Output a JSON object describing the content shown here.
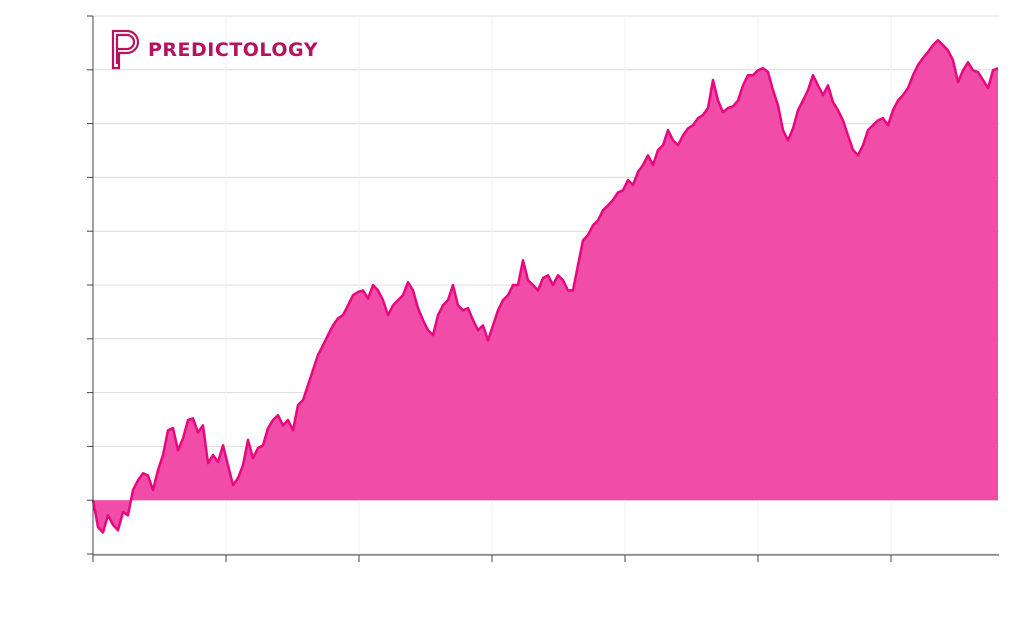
{
  "logo": "PREDICTOLOGY",
  "chart_data": {
    "type": "area",
    "color": "#f04ca8",
    "line_color": "#e8077f",
    "xlim": [
      0,
      181.2
    ],
    "xticks": [
      0,
      26.6,
      53.2,
      79.8,
      106.4,
      133,
      159.6
    ],
    "ylim": [
      -1,
      9
    ],
    "yticks": [
      -1,
      0,
      1,
      2,
      3,
      4,
      5,
      6,
      7,
      8,
      9
    ],
    "grid": true,
    "x": [
      0,
      1,
      2,
      3,
      4,
      5,
      6,
      7,
      8,
      9,
      10,
      11,
      12,
      13,
      14,
      15,
      16,
      17,
      18,
      19,
      20,
      21,
      22,
      23,
      24,
      25,
      26,
      27,
      28,
      29,
      30,
      31,
      32,
      33,
      34,
      35,
      36,
      37,
      38,
      39,
      40,
      41,
      42,
      43,
      44,
      45,
      46,
      47,
      48,
      49,
      50,
      51,
      52,
      53,
      54,
      55,
      56,
      57,
      58,
      59,
      60,
      61,
      62,
      63,
      64,
      65,
      66,
      67,
      68,
      69,
      70,
      71,
      72,
      73,
      74,
      75,
      76,
      77,
      78,
      79,
      80,
      81,
      82,
      83,
      84,
      85,
      86,
      87,
      88,
      89,
      90,
      91,
      92,
      93,
      94,
      95,
      96,
      97,
      98,
      99,
      100,
      101,
      102,
      103,
      104,
      105,
      106,
      107,
      108,
      109,
      110,
      111,
      112,
      113,
      114,
      115,
      116,
      117,
      118,
      119,
      120,
      121,
      122,
      123,
      124,
      125,
      126,
      127,
      128,
      129,
      130,
      131,
      132,
      133,
      134,
      135,
      136,
      137,
      138,
      139,
      140,
      141,
      142,
      143,
      144,
      145,
      146,
      147,
      148,
      149,
      150,
      151,
      152,
      153,
      154,
      155,
      156,
      157,
      158,
      159,
      160,
      161,
      162,
      163,
      164,
      165,
      166,
      167,
      168,
      169,
      170,
      171,
      172,
      173,
      174,
      175,
      176,
      177,
      178,
      179,
      180,
      181
    ],
    "values": [
      0,
      -0.5,
      -0.6,
      -0.28,
      -0.46,
      -0.56,
      -0.22,
      -0.28,
      0.19,
      0.37,
      0.5,
      0.46,
      0.19,
      0.56,
      0.84,
      1.3,
      1.34,
      0.93,
      1.15,
      1.49,
      1.52,
      1.26,
      1.39,
      0.69,
      0.84,
      0.71,
      1.02,
      0.65,
      0.28,
      0.41,
      0.65,
      1.12,
      0.78,
      0.97,
      1.02,
      1.34,
      1.49,
      1.58,
      1.39,
      1.49,
      1.3,
      1.77,
      1.86,
      2.14,
      2.42,
      2.7,
      2.88,
      3.07,
      3.25,
      3.38,
      3.44,
      3.62,
      3.81,
      3.87,
      3.9,
      3.75,
      4.0,
      3.9,
      3.72,
      3.44,
      3.62,
      3.72,
      3.81,
      4.05,
      3.9,
      3.57,
      3.35,
      3.16,
      3.07,
      3.44,
      3.62,
      3.72,
      4.0,
      3.62,
      3.53,
      3.57,
      3.35,
      3.16,
      3.25,
      2.97,
      3.25,
      3.53,
      3.72,
      3.81,
      4.0,
      4.0,
      4.46,
      4.09,
      4.0,
      3.9,
      4.13,
      4.18,
      4.0,
      4.18,
      4.09,
      3.9,
      3.9,
      4.37,
      4.83,
      4.93,
      5.11,
      5.2,
      5.39,
      5.48,
      5.58,
      5.72,
      5.76,
      5.95,
      5.86,
      6.1,
      6.23,
      6.41,
      6.23,
      6.51,
      6.6,
      6.88,
      6.69,
      6.6,
      6.78,
      6.91,
      6.97,
      7.1,
      7.16,
      7.29,
      7.81,
      7.43,
      7.21,
      7.29,
      7.32,
      7.43,
      7.71,
      7.9,
      7.9,
      7.99,
      8.03,
      7.96,
      7.62,
      7.34,
      6.88,
      6.69,
      6.91,
      7.25,
      7.43,
      7.62,
      7.9,
      7.71,
      7.53,
      7.71,
      7.4,
      7.25,
      7.06,
      6.78,
      6.51,
      6.41,
      6.6,
      6.88,
      6.97,
      7.06,
      7.1,
      6.97,
      7.25,
      7.43,
      7.53,
      7.66,
      7.9,
      8.09,
      8.22,
      8.33,
      8.46,
      8.55,
      8.46,
      8.36,
      8.18,
      7.77,
      7.99,
      8.14,
      7.99,
      7.96,
      7.81,
      7.66,
      7.99,
      8.03
    ]
  }
}
